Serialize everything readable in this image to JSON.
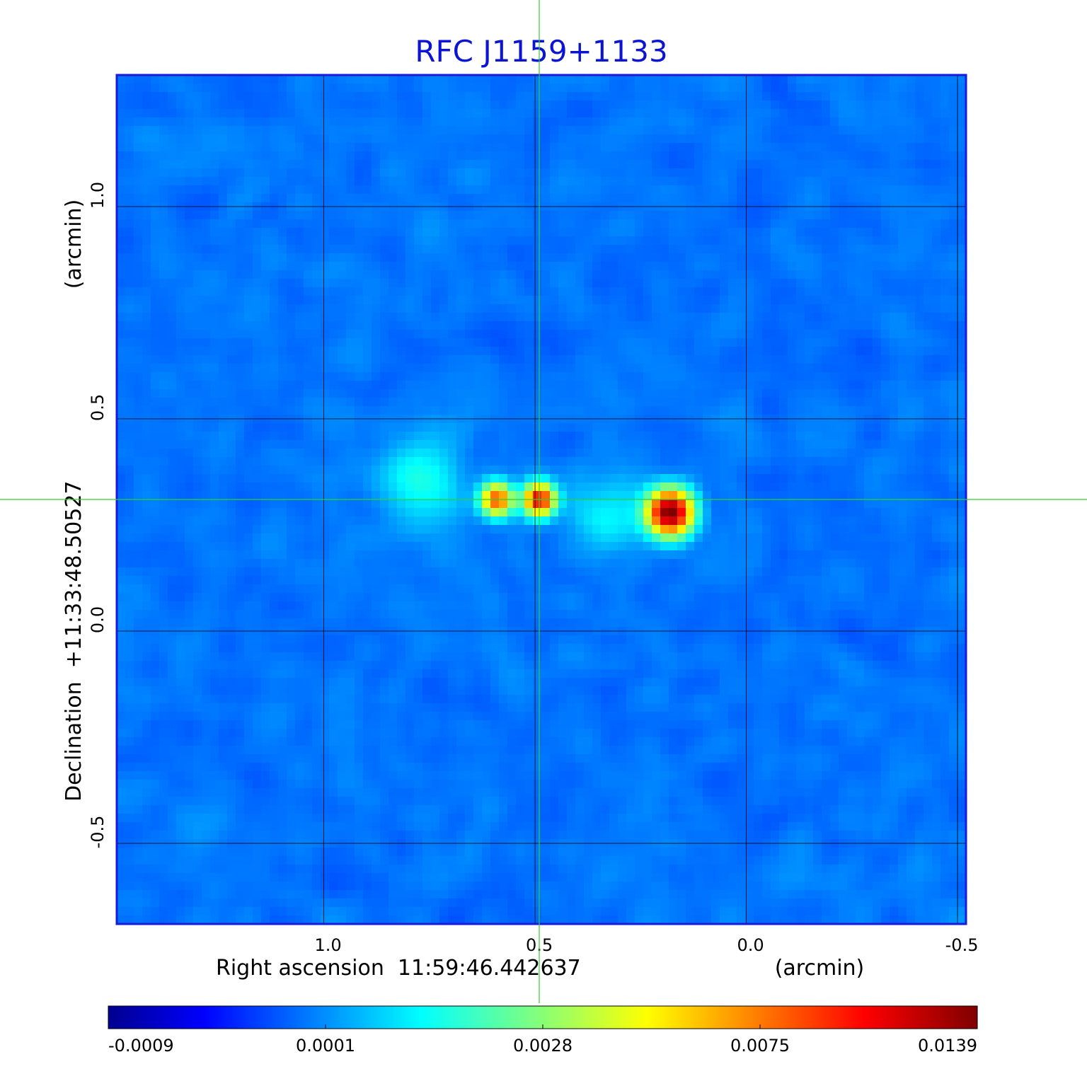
{
  "chart_data": {
    "type": "heatmap",
    "title": "RFC J1159+1133",
    "xlabel": "Right ascension  11:59:46.442637",
    "xunit": "(arcmin)",
    "ylabel": "Declination  +11:33:48.50527",
    "yunit": "(arcmin)",
    "x_ticks": [
      {
        "value": 1.0,
        "label": "1.0"
      },
      {
        "value": 0.5,
        "label": "0.5"
      },
      {
        "value": 0.0,
        "label": "0.0"
      },
      {
        "value": -0.5,
        "label": "-0.5"
      }
    ],
    "y_ticks": [
      {
        "value": 1.0,
        "label": "1.0"
      },
      {
        "value": 0.5,
        "label": "0.5"
      },
      {
        "value": 0.0,
        "label": "0.0"
      },
      {
        "value": -0.5,
        "label": "-0.5"
      }
    ],
    "xlim": [
      1.49,
      -0.52
    ],
    "ylim": [
      -0.69,
      1.31
    ],
    "grid": true,
    "crosshair": {
      "x": 0.49,
      "y": 0.31
    },
    "colormap": "jet",
    "colorbar": {
      "min": -0.0009,
      "max": 0.0139,
      "tick_labels": [
        "-0.0009",
        "0.0001",
        "0.0028",
        "0.0075",
        "0.0139"
      ]
    },
    "sources": [
      {
        "x": 0.59,
        "y": 0.31,
        "peak": 0.0085,
        "sigma": 0.025
      },
      {
        "x": 0.49,
        "y": 0.31,
        "peak": 0.0105,
        "sigma": 0.025
      },
      {
        "x": 0.18,
        "y": 0.28,
        "peak": 0.0139,
        "sigma": 0.035
      },
      {
        "x": 0.77,
        "y": 0.35,
        "peak": 0.0016,
        "sigma": 0.07
      },
      {
        "x": 0.33,
        "y": 0.27,
        "peak": 0.0014,
        "sigma": 0.06
      }
    ]
  },
  "colors": {
    "title": "#0a14d2",
    "crosshair": "#2ed12e",
    "frame": "#1a1adc",
    "grid": "#000000"
  }
}
